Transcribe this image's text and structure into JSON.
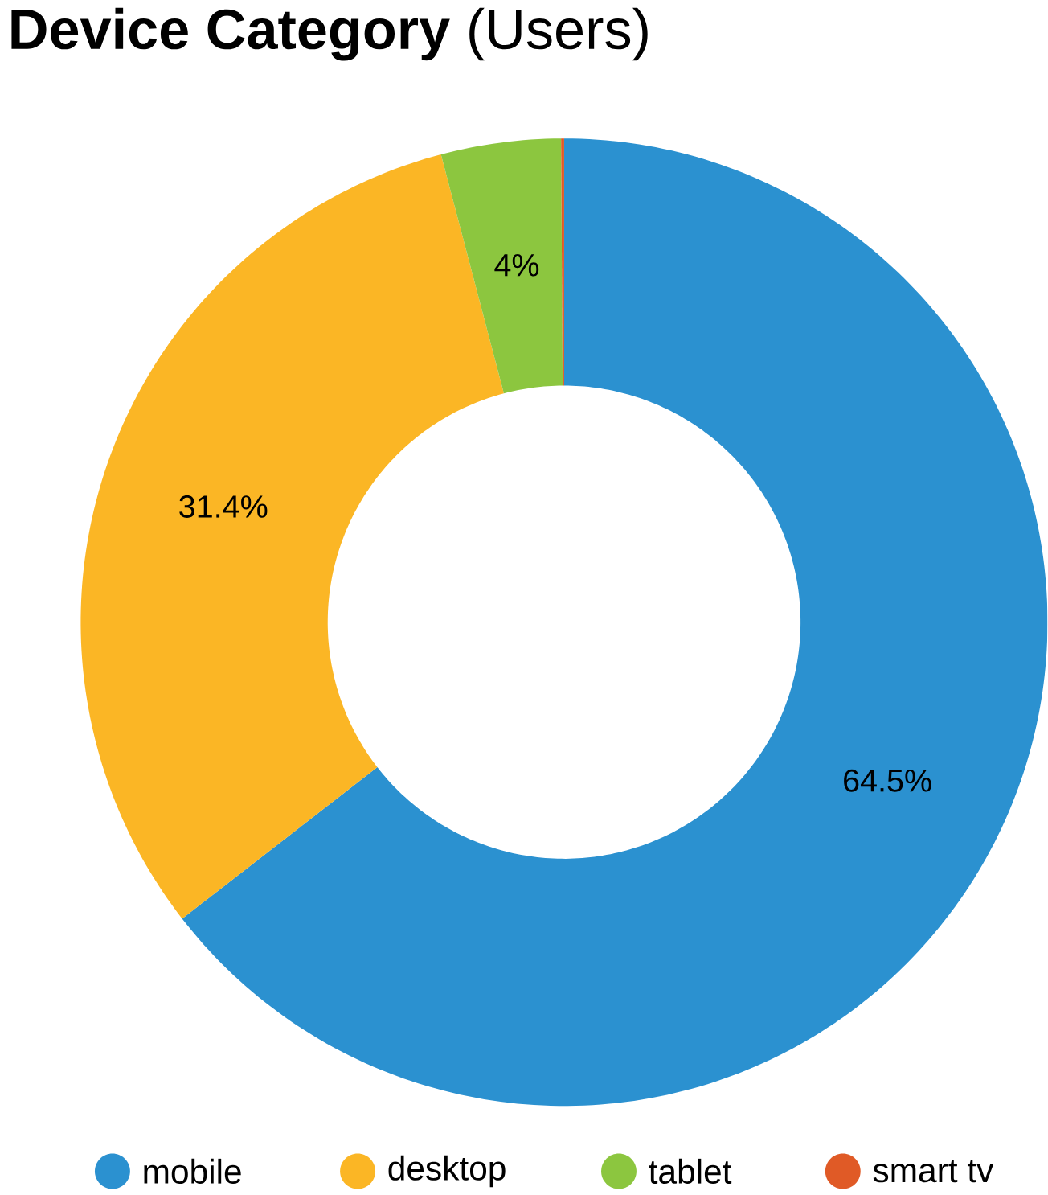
{
  "chart_data": {
    "type": "donut",
    "title": "**Device Category** (Users)",
    "categories": [
      "mobile",
      "desktop",
      "tablet",
      "smart tv"
    ],
    "values": [
      64.5,
      31.4,
      4,
      0.1
    ],
    "value_labels": [
      "64.5%",
      "31.4%",
      "4%",
      null
    ],
    "colors": [
      "#2b91d0",
      "#fbb625",
      "#8cc63f",
      "#e05a26"
    ],
    "legend": "bottom"
  }
}
